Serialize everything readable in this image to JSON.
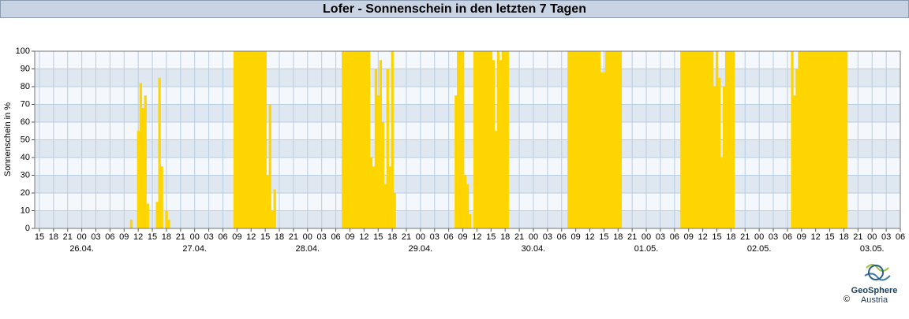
{
  "chart_data": {
    "type": "bar",
    "title": "Lofer - Sonnenschein in den letzten 7 Tagen",
    "ylabel": "Sonnenschein in %",
    "x": [
      10.5,
      12,
      12.5,
      13,
      13.5,
      14,
      16,
      16.5,
      17,
      18,
      18.5,
      32.5,
      33,
      33.5,
      34,
      34.5,
      35,
      35.5,
      36,
      36.5,
      37,
      37.5,
      38,
      38.5,
      39,
      39.5,
      40,
      40.5,
      41,
      55.5,
      56,
      56.5,
      57,
      57.5,
      58,
      58.5,
      59,
      59.5,
      60,
      60.5,
      61,
      61.5,
      62,
      62.5,
      63,
      63.5,
      64,
      64.5,
      65,
      65.5,
      66,
      66.5,
      79.5,
      80,
      80.5,
      81,
      81.5,
      82,
      82.5,
      83.5,
      84,
      84.5,
      85,
      85.5,
      86,
      86.5,
      87,
      87.5,
      88,
      88.5,
      89,
      89.5,
      90,
      90.5,
      103.5,
      104,
      104.5,
      105,
      105.5,
      106,
      106.5,
      107,
      107.5,
      108,
      108.5,
      109,
      109.5,
      110,
      110.5,
      111,
      111.5,
      112,
      112.5,
      113,
      113.5,
      114,
      114.5,
      127.5,
      128,
      128.5,
      129,
      129.5,
      130,
      130.5,
      131,
      131.5,
      132,
      132.5,
      133,
      133.5,
      134,
      134.5,
      135,
      135.5,
      136,
      136.5,
      137,
      137.5,
      138,
      138.5,
      151,
      151.5,
      152,
      152.5,
      153,
      153.5,
      154,
      154.5,
      155,
      155.5,
      156,
      156.5,
      157,
      157.5,
      158,
      158.5,
      159,
      159.5,
      160,
      160.5,
      161,
      161.5,
      162,
      162.5
    ],
    "values": [
      5,
      55,
      82,
      68,
      75,
      14,
      15,
      85,
      35,
      10,
      5,
      100,
      100,
      100,
      100,
      100,
      100,
      100,
      100,
      100,
      100,
      100,
      100,
      100,
      100,
      30,
      70,
      10,
      22,
      100,
      100,
      100,
      100,
      100,
      100,
      100,
      100,
      100,
      100,
      100,
      100,
      40,
      35,
      90,
      75,
      95,
      60,
      25,
      90,
      35,
      100,
      20,
      75,
      100,
      100,
      100,
      30,
      25,
      8,
      100,
      100,
      100,
      100,
      100,
      100,
      100,
      100,
      95,
      55,
      100,
      95,
      100,
      100,
      100,
      100,
      100,
      100,
      100,
      100,
      100,
      100,
      100,
      100,
      100,
      100,
      100,
      100,
      100,
      88,
      88,
      100,
      100,
      100,
      100,
      100,
      100,
      100,
      100,
      100,
      100,
      100,
      100,
      100,
      100,
      100,
      100,
      100,
      100,
      100,
      100,
      100,
      80,
      100,
      85,
      40,
      80,
      100,
      100,
      100,
      100,
      100,
      75,
      90,
      100,
      100,
      100,
      100,
      100,
      100,
      100,
      100,
      100,
      100,
      100,
      100,
      100,
      100,
      100,
      100,
      100,
      100,
      100,
      100,
      100
    ],
    "color": "#ffd500",
    "grid": true,
    "xlim": [
      -10,
      174
    ],
    "ylim": [
      0,
      100
    ],
    "yticks": [
      0,
      10,
      20,
      30,
      40,
      50,
      60,
      70,
      80,
      90,
      100
    ],
    "xticks": [
      {
        "value": -9,
        "label": "15"
      },
      {
        "value": -6,
        "label": "18"
      },
      {
        "value": -3,
        "label": "21"
      },
      {
        "value": 0,
        "label": "00"
      },
      {
        "value": 3,
        "label": "03"
      },
      {
        "value": 6,
        "label": "06"
      },
      {
        "value": 9,
        "label": "09"
      },
      {
        "value": 12,
        "label": "12"
      },
      {
        "value": 15,
        "label": "15"
      },
      {
        "value": 18,
        "label": "18"
      },
      {
        "value": 21,
        "label": "21"
      },
      {
        "value": 24,
        "label": "00"
      },
      {
        "value": 27,
        "label": "03"
      },
      {
        "value": 30,
        "label": "06"
      },
      {
        "value": 33,
        "label": "09"
      },
      {
        "value": 36,
        "label": "12"
      },
      {
        "value": 39,
        "label": "15"
      },
      {
        "value": 42,
        "label": "18"
      },
      {
        "value": 45,
        "label": "21"
      },
      {
        "value": 48,
        "label": "00"
      },
      {
        "value": 51,
        "label": "03"
      },
      {
        "value": 54,
        "label": "06"
      },
      {
        "value": 57,
        "label": "09"
      },
      {
        "value": 60,
        "label": "12"
      },
      {
        "value": 63,
        "label": "15"
      },
      {
        "value": 66,
        "label": "18"
      },
      {
        "value": 69,
        "label": "21"
      },
      {
        "value": 72,
        "label": "00"
      },
      {
        "value": 75,
        "label": "03"
      },
      {
        "value": 78,
        "label": "06"
      },
      {
        "value": 81,
        "label": "09"
      },
      {
        "value": 84,
        "label": "12"
      },
      {
        "value": 87,
        "label": "15"
      },
      {
        "value": 90,
        "label": "18"
      },
      {
        "value": 93,
        "label": "21"
      },
      {
        "value": 96,
        "label": "00"
      },
      {
        "value": 99,
        "label": "03"
      },
      {
        "value": 102,
        "label": "06"
      },
      {
        "value": 105,
        "label": "09"
      },
      {
        "value": 108,
        "label": "12"
      },
      {
        "value": 111,
        "label": "15"
      },
      {
        "value": 114,
        "label": "18"
      },
      {
        "value": 117,
        "label": "21"
      },
      {
        "value": 120,
        "label": "00"
      },
      {
        "value": 123,
        "label": "03"
      },
      {
        "value": 126,
        "label": "06"
      },
      {
        "value": 129,
        "label": "09"
      },
      {
        "value": 132,
        "label": "12"
      },
      {
        "value": 135,
        "label": "15"
      },
      {
        "value": 138,
        "label": "18"
      },
      {
        "value": 141,
        "label": "21"
      },
      {
        "value": 144,
        "label": "00"
      },
      {
        "value": 147,
        "label": "03"
      },
      {
        "value": 150,
        "label": "06"
      },
      {
        "value": 153,
        "label": "09"
      },
      {
        "value": 156,
        "label": "12"
      },
      {
        "value": 159,
        "label": "15"
      },
      {
        "value": 162,
        "label": "18"
      },
      {
        "value": 165,
        "label": "21"
      },
      {
        "value": 168,
        "label": "00"
      },
      {
        "value": 171,
        "label": "03"
      },
      {
        "value": 174,
        "label": "06"
      }
    ],
    "date_labels": [
      {
        "value": 0,
        "label": "26.04."
      },
      {
        "value": 24,
        "label": "27.04."
      },
      {
        "value": 48,
        "label": "28.04."
      },
      {
        "value": 72,
        "label": "29.04."
      },
      {
        "value": 96,
        "label": "30.04."
      },
      {
        "value": 120,
        "label": "01.05."
      },
      {
        "value": 144,
        "label": "02.05."
      },
      {
        "value": 168,
        "label": "03.05."
      }
    ]
  },
  "logo": {
    "name": "GeoSphere",
    "sub": "Austria",
    "copyright": "©"
  }
}
